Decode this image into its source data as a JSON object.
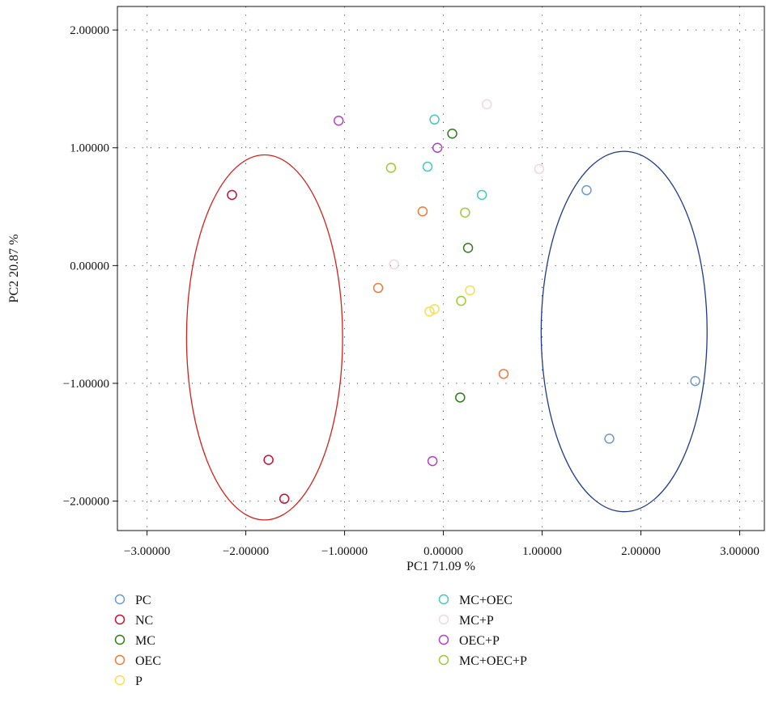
{
  "chart_data": {
    "type": "scatter",
    "title": "",
    "xlabel": "PC1 71.09 %",
    "ylabel": "PC2 20.87 %",
    "xlim": [
      -3.3,
      3.25
    ],
    "ylim": [
      -2.25,
      2.2
    ],
    "x_ticks": [
      -3,
      -2,
      -1,
      0,
      1,
      2,
      3
    ],
    "x_tick_labels": [
      "−3.00000",
      "−2.00000",
      "−1.00000",
      "0.00000",
      "1.00000",
      "2.00000",
      "3.00000"
    ],
    "y_ticks": [
      -2,
      -1,
      0,
      1,
      2
    ],
    "y_tick_labels": [
      "−2.00000",
      "−1.00000",
      "0.00000",
      "1.00000",
      "2.00000"
    ],
    "grid": "dotted",
    "legend_position": "bottom",
    "series": [
      {
        "name": "PC",
        "color": "#6b9bd2",
        "points": [
          [
            1.45,
            0.64
          ],
          [
            2.55,
            -0.98
          ],
          [
            1.68,
            -1.47
          ]
        ]
      },
      {
        "name": "NC",
        "color": "#c8102e",
        "points": [
          [
            -2.14,
            0.6
          ],
          [
            -1.77,
            -1.65
          ],
          [
            -1.61,
            -1.98
          ]
        ]
      },
      {
        "name": "MC",
        "color": "#2e7d1a",
        "points": [
          [
            0.09,
            1.12
          ],
          [
            0.25,
            0.15
          ],
          [
            0.17,
            -1.12
          ]
        ]
      },
      {
        "name": "OEC",
        "color": "#f07a3c",
        "points": [
          [
            -0.21,
            0.46
          ],
          [
            -0.66,
            -0.19
          ],
          [
            0.61,
            -0.92
          ]
        ]
      },
      {
        "name": "P",
        "color": "#f5e04a",
        "points": [
          [
            0.27,
            -0.21
          ],
          [
            -0.09,
            -0.37
          ],
          [
            -0.14,
            -0.39
          ]
        ]
      },
      {
        "name": "MC+OEC",
        "color": "#44c8c0",
        "points": [
          [
            -0.09,
            1.24
          ],
          [
            -0.16,
            0.84
          ],
          [
            0.39,
            0.6
          ]
        ]
      },
      {
        "name": "MC+P",
        "color": "#f3d6dc",
        "points": [
          [
            0.44,
            1.37
          ],
          [
            0.97,
            0.82
          ],
          [
            -0.5,
            0.01
          ]
        ]
      },
      {
        "name": "OEC+P",
        "color": "#b040c8",
        "points": [
          [
            -1.06,
            1.23
          ],
          [
            -0.06,
            1.0
          ],
          [
            -0.11,
            -1.66
          ]
        ]
      },
      {
        "name": "MC+OEC+P",
        "color": "#9acd32",
        "points": [
          [
            -0.53,
            0.83
          ],
          [
            0.22,
            0.45
          ],
          [
            0.18,
            -0.3
          ]
        ]
      }
    ],
    "ellipses": [
      {
        "group": "NC",
        "color": "#d0221c",
        "center": [
          -1.81,
          -0.61
        ],
        "radii": [
          0.79,
          1.55
        ]
      },
      {
        "group": "PC",
        "color": "#1f3a8a",
        "center": [
          1.83,
          -0.56
        ],
        "radii": [
          0.84,
          1.53
        ]
      }
    ]
  }
}
